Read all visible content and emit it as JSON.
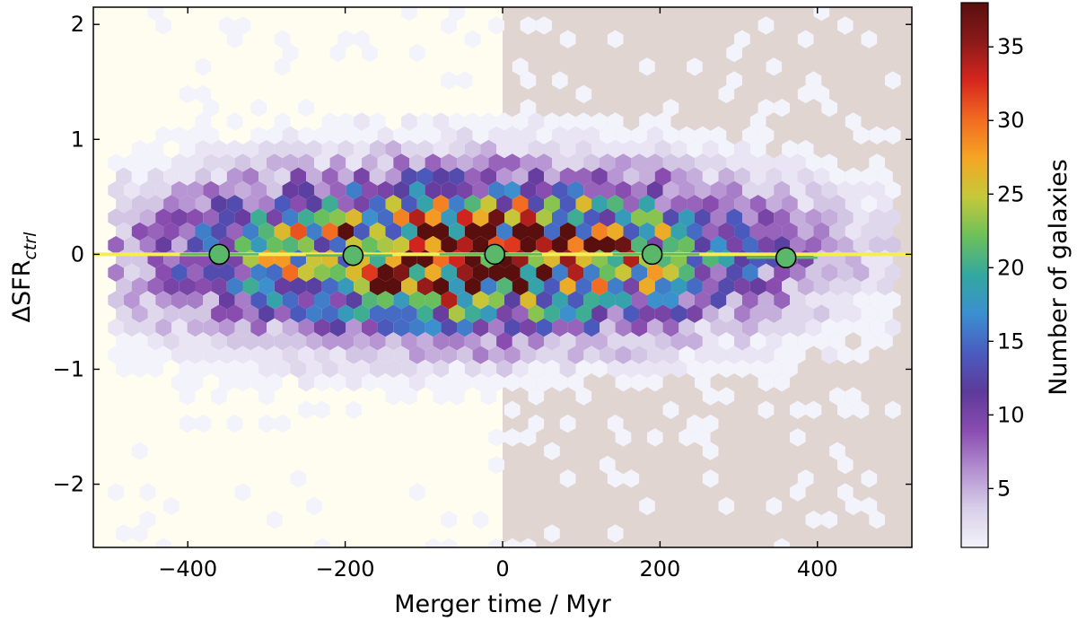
{
  "chart_data": [
    {
      "type": "heatmap",
      "subtype": "hexbin",
      "title": "",
      "xlabel": "Merger time / Myr",
      "ylabel_main": "ΔSFR",
      "ylabel_sub": "ctrl",
      "xlim": [
        -520,
        520
      ],
      "ylim": [
        -2.55,
        2.15
      ],
      "xticks": [
        -400,
        -200,
        0,
        200,
        400
      ],
      "xtick_labels": [
        "−400",
        "−200",
        "0",
        "200",
        "400"
      ],
      "yticks": [
        2,
        1,
        0,
        -1,
        -2
      ],
      "ytick_labels": [
        "2",
        "1",
        "0",
        "−1",
        "−2"
      ],
      "grid": false,
      "background_regions": [
        {
          "x_from": -520,
          "x_to": 0,
          "color": "#fffdf0"
        },
        {
          "x_from": 0,
          "x_to": 520,
          "color": "#e1d5d1"
        }
      ],
      "reference_line": {
        "y": 0,
        "color": "#f5ec5a"
      },
      "series": [
        {
          "x": [
            -360,
            -190,
            -10,
            190,
            360
          ],
          "values": [
            0.0,
            -0.01,
            0.0,
            0.0,
            -0.03
          ],
          "color": "#5bb86b",
          "marker": "circle"
        }
      ],
      "bin_segments": [
        {
          "x_from": -410,
          "x_to": -310,
          "value": 0.0
        },
        {
          "x_from": -250,
          "x_to": -140,
          "value": -0.01
        },
        {
          "x_from": -80,
          "x_to": 50,
          "value": 0.0
        },
        {
          "x_from": 140,
          "x_to": 250,
          "value": 0.0
        },
        {
          "x_from": 310,
          "x_to": 400,
          "value": -0.03
        }
      ],
      "density": {
        "x_range": [
          -500,
          500
        ],
        "x_sigma": 230,
        "y_sigma": 0.42,
        "peak_count": 38,
        "peak_x": -40
      }
    },
    {
      "type": "colorbar",
      "label": "Number of galaxies",
      "range": [
        1,
        38
      ],
      "ticks": [
        5,
        10,
        15,
        20,
        25,
        30,
        35
      ],
      "colormap": [
        "#f3f3fb",
        "#d8cfe8",
        "#b38fd0",
        "#8a4cb0",
        "#5d3a9a",
        "#4a5cbf",
        "#3b8fd0",
        "#33a8a0",
        "#6cc05a",
        "#c4c93a",
        "#f5a623",
        "#f26b21",
        "#d7261e",
        "#8b1a1a",
        "#5a0f0f"
      ]
    }
  ]
}
